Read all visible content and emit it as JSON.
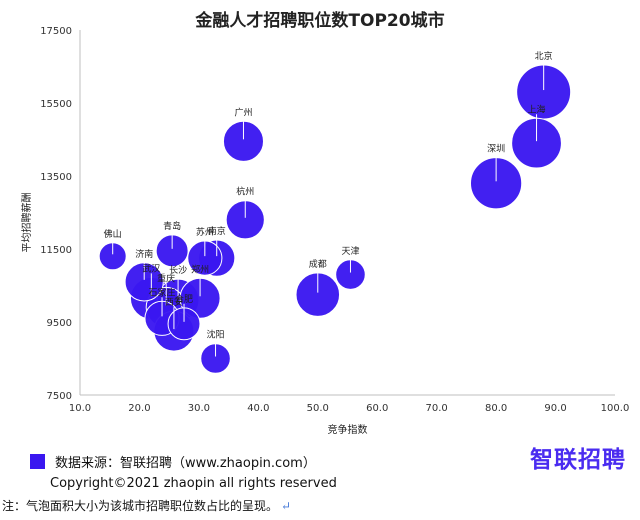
{
  "chart_data": {
    "type": "scatter",
    "variant": "bubble",
    "title": "金融人才招聘职位数TOP20城市",
    "xlabel": "竞争指数",
    "ylabel": "平均招聘薪酬",
    "xlim": [
      10.0,
      100.0
    ],
    "ylim": [
      7500,
      17500
    ],
    "x_ticks": [
      "10.0",
      "20.0",
      "30.0",
      "40.0",
      "50.0",
      "60.0",
      "70.0",
      "80.0",
      "90.0",
      "100.0"
    ],
    "y_ticks": [
      "7500",
      "9500",
      "11500",
      "13500",
      "15500",
      "17500"
    ],
    "grid": false,
    "bubble_color": "#3a17f0",
    "points": [
      {
        "label": "北京",
        "x": 88.0,
        "y": 15800,
        "size": 1.0
      },
      {
        "label": "上海",
        "x": 86.8,
        "y": 14400,
        "size": 0.85
      },
      {
        "label": "深圳",
        "x": 80.0,
        "y": 13300,
        "size": 0.9
      },
      {
        "label": "广州",
        "x": 37.5,
        "y": 14450,
        "size": 0.55
      },
      {
        "label": "杭州",
        "x": 37.8,
        "y": 12300,
        "size": 0.5
      },
      {
        "label": "天津",
        "x": 55.5,
        "y": 10800,
        "size": 0.3
      },
      {
        "label": "成都",
        "x": 50.0,
        "y": 10250,
        "size": 0.65
      },
      {
        "label": "佛山",
        "x": 15.5,
        "y": 11300,
        "size": 0.25
      },
      {
        "label": "青岛",
        "x": 25.5,
        "y": 11450,
        "size": 0.35
      },
      {
        "label": "济南",
        "x": 20.8,
        "y": 10600,
        "size": 0.5
      },
      {
        "label": "苏州",
        "x": 31.0,
        "y": 11250,
        "size": 0.4
      },
      {
        "label": "南京",
        "x": 33.0,
        "y": 11250,
        "size": 0.45
      },
      {
        "label": "武汉",
        "x": 22.0,
        "y": 10150,
        "size": 0.6
      },
      {
        "label": "长沙",
        "x": 26.5,
        "y": 10100,
        "size": 0.6
      },
      {
        "label": "重庆",
        "x": 24.5,
        "y": 9900,
        "size": 0.55
      },
      {
        "label": "郑州",
        "x": 30.2,
        "y": 10150,
        "size": 0.55
      },
      {
        "label": "石家庄",
        "x": 23.8,
        "y": 9600,
        "size": 0.4
      },
      {
        "label": "合肥",
        "x": 27.5,
        "y": 9450,
        "size": 0.35
      },
      {
        "label": "西安",
        "x": 25.8,
        "y": 9250,
        "size": 0.55
      },
      {
        "label": "沈阳",
        "x": 32.8,
        "y": 8500,
        "size": 0.3
      }
    ]
  },
  "footer": {
    "source": "数据来源：智联招聘（www.zhaopin.com）",
    "copyright": "Copyright©2021 zhaopin all rights reserved",
    "logo_text": "智联招聘",
    "note": "注：气泡面积大小为该城市招聘职位数占比的呈现。",
    "note_mark": "↵"
  }
}
